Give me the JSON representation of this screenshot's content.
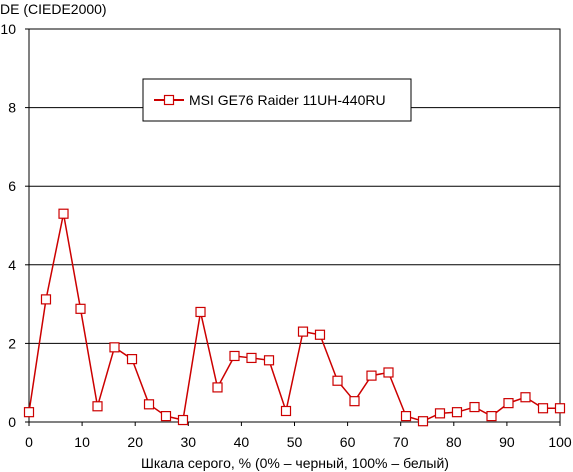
{
  "chart_data": {
    "type": "line",
    "title": "",
    "ylabel": "DE (CIEDE2000)",
    "xlabel": "Шкала серого, % (0% – черный, 100% – белый)",
    "xlim": [
      0,
      100
    ],
    "ylim": [
      0,
      10
    ],
    "xticks": [
      0,
      10,
      20,
      30,
      40,
      50,
      60,
      70,
      80,
      90,
      100
    ],
    "yticks": [
      0,
      2,
      4,
      6,
      8,
      10
    ],
    "grid": "horizontal",
    "legend": "top-center",
    "series": [
      {
        "name": "MSI GE76 Raider 11UH-440RU",
        "color": "#cc0000",
        "x": [
          0,
          3.2,
          6.5,
          9.7,
          12.9,
          16.1,
          19.4,
          22.6,
          25.8,
          29.0,
          32.3,
          35.5,
          38.7,
          41.9,
          45.2,
          48.4,
          51.6,
          54.8,
          58.1,
          61.3,
          64.5,
          67.7,
          71.0,
          74.2,
          77.4,
          80.6,
          83.9,
          87.1,
          90.3,
          93.5,
          96.8,
          100
        ],
        "y": [
          0.25,
          3.12,
          5.3,
          2.88,
          0.4,
          1.9,
          1.6,
          0.45,
          0.15,
          0.05,
          2.8,
          0.88,
          1.68,
          1.63,
          1.57,
          0.28,
          2.3,
          2.22,
          1.05,
          0.53,
          1.18,
          1.26,
          0.15,
          0.02,
          0.22,
          0.25,
          0.38,
          0.15,
          0.48,
          0.63,
          0.35,
          0.35
        ]
      }
    ]
  }
}
